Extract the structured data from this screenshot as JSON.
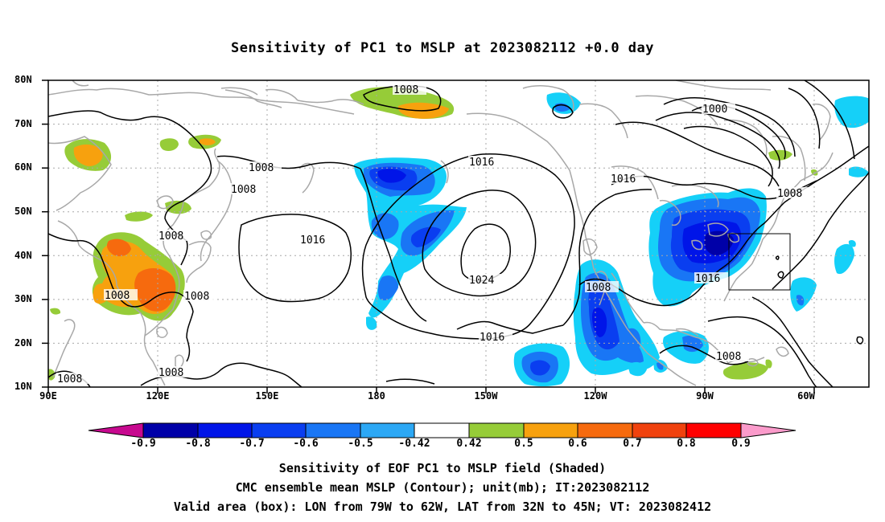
{
  "title": "Sensitivity of PC1 to MSLP at 2023082112 +0.0 day",
  "lat_ticks": [
    "80N",
    "70N",
    "60N",
    "50N",
    "40N",
    "30N",
    "20N",
    "10N"
  ],
  "lon_ticks": [
    "90E",
    "120E",
    "150E",
    "180",
    "150W",
    "120W",
    "90W",
    "60W"
  ],
  "contour_labels": [
    "1008",
    "1000",
    "1016",
    "1016",
    "1008",
    "1008",
    "1008",
    "1016",
    "1024",
    "1016",
    "1008",
    "1008",
    "1016",
    "1008",
    "1008",
    "1008",
    "1008"
  ],
  "colorbar": {
    "labels": [
      "-0.9",
      "-0.8",
      "-0.7",
      "-0.6",
      "-0.5",
      "-0.42",
      "0.42",
      "0.5",
      "0.6",
      "0.7",
      "0.8",
      "0.9"
    ],
    "colors": [
      "#c7098f",
      "#0000a8",
      "#0015e8",
      "#0a3ef0",
      "#1976f5",
      "#2ca8f5",
      "#15d0f8",
      "#ffffff",
      "#96cc38",
      "#f7a10e",
      "#f66a0e",
      "#f0420e",
      "#ff0000",
      "#fb9bcb"
    ]
  },
  "captions": [
    "Sensitivity of EOF PC1 to MSLP field (Shaded)",
    "CMC ensemble mean MSLP (Contour); unit(mb); IT:2023082112",
    "Valid area (box): LON from 79W to 62W, LAT from 32N to 45N; VT: 2023082412"
  ]
}
